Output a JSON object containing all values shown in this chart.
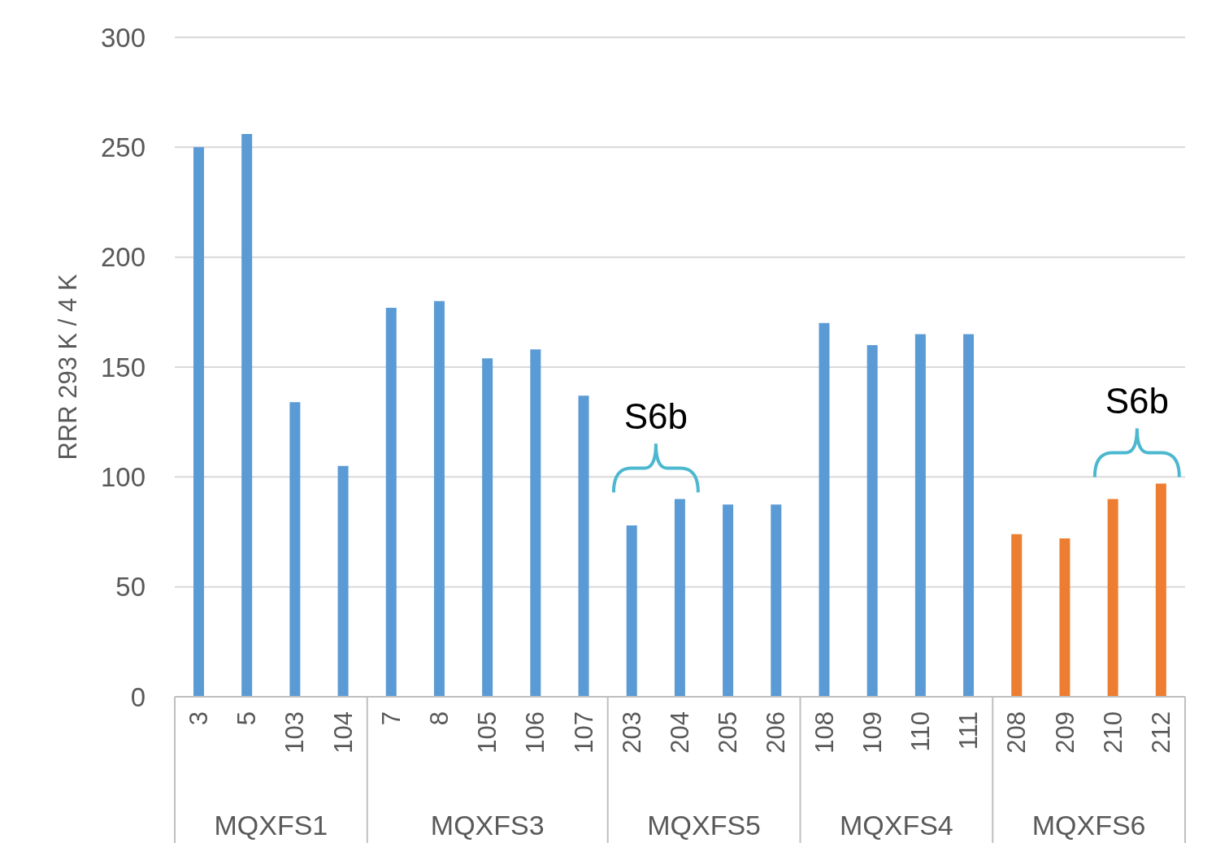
{
  "chart_data": {
    "type": "bar",
    "ylabel": "RRR 293 K / 4 K",
    "categories": [
      "3",
      "5",
      "103",
      "104",
      "7",
      "8",
      "105",
      "106",
      "107",
      "203",
      "204",
      "205",
      "206",
      "108",
      "109",
      "110",
      "111",
      "208",
      "209",
      "210",
      "212"
    ],
    "series": [
      {
        "color": "#5b9bd5",
        "values": [
          250,
          256,
          134,
          105,
          null,
          null,
          null,
          null,
          null,
          null,
          null,
          null,
          null,
          null,
          null,
          null,
          null,
          null,
          null,
          null,
          null
        ]
      },
      {
        "color": "#5b9bd5",
        "values": [
          null,
          null,
          null,
          null,
          177,
          180,
          154,
          158,
          137,
          null,
          null,
          null,
          null,
          null,
          null,
          null,
          null,
          null,
          null,
          null,
          null
        ]
      },
      {
        "color": "#5b9bd5",
        "values": [
          null,
          null,
          null,
          null,
          null,
          null,
          null,
          null,
          null,
          78,
          90,
          87.5,
          87.5,
          null,
          null,
          null,
          null,
          null,
          null,
          null,
          null
        ]
      },
      {
        "color": "#5b9bd5",
        "values": [
          null,
          null,
          null,
          null,
          null,
          null,
          null,
          null,
          null,
          null,
          null,
          null,
          null,
          170,
          160,
          165,
          165,
          null,
          null,
          null,
          null
        ]
      },
      {
        "color": "#ed7d31",
        "values": [
          null,
          null,
          null,
          null,
          null,
          null,
          null,
          null,
          null,
          null,
          null,
          null,
          null,
          null,
          null,
          null,
          null,
          74,
          72,
          90,
          97
        ]
      }
    ],
    "ylim": [
      0,
      300
    ],
    "yticks": [
      0,
      50,
      100,
      150,
      200,
      250,
      300
    ],
    "grid": "y",
    "annotations": [
      "MQXFS1",
      "MQXFS3",
      "MQXFS5",
      "MQXFS4",
      "MQXFS6",
      {
        "text": "S6b",
        "x": "204",
        "y": 90
      },
      {
        "text": "S6b",
        "x": "212",
        "y": 97
      }
    ]
  }
}
